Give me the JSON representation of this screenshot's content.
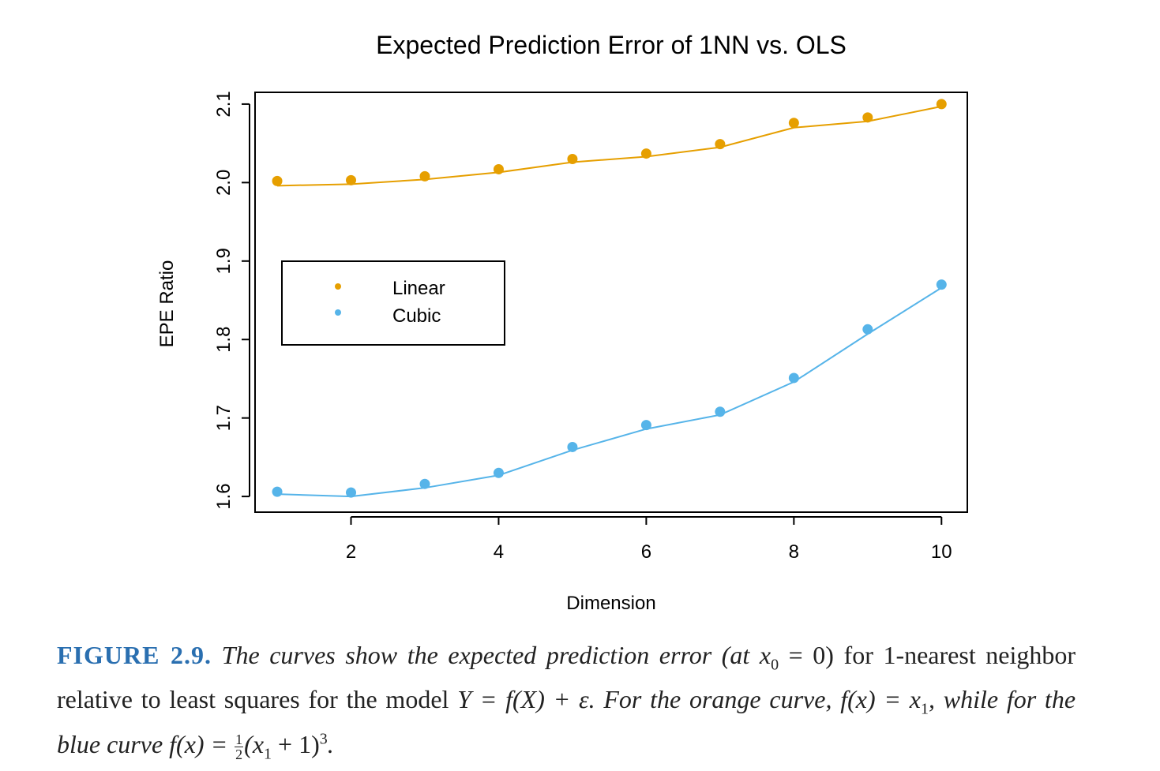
{
  "chart_data": {
    "type": "scatter",
    "title": "Expected Prediction Error of 1NN vs. OLS",
    "xlabel": "Dimension",
    "ylabel": "EPE Ratio",
    "x": [
      1,
      2,
      3,
      4,
      5,
      6,
      7,
      8,
      9,
      10
    ],
    "xticks": [
      "2",
      "4",
      "6",
      "8",
      "10"
    ],
    "yticks": [
      "1.6",
      "1.7",
      "1.8",
      "1.9",
      "2.0",
      "2.1"
    ],
    "xlim": [
      0.7,
      10.35
    ],
    "ylim": [
      1.58,
      2.115
    ],
    "legend_position": "upper-left",
    "series": [
      {
        "name": "Linear",
        "color": "#E69F00",
        "points": [
          2.002,
          2.003,
          2.008,
          2.017,
          2.03,
          2.037,
          2.049,
          2.076,
          2.083,
          2.1
        ],
        "line": [
          1.996,
          1.998,
          2.004,
          2.013,
          2.026,
          2.033,
          2.045,
          2.07,
          2.078,
          2.097
        ]
      },
      {
        "name": "Cubic",
        "color": "#56B4E9",
        "points": [
          1.606,
          1.605,
          1.616,
          1.63,
          1.663,
          1.691,
          1.708,
          1.751,
          1.813,
          1.87
        ],
        "line": [
          1.603,
          1.6,
          1.611,
          1.627,
          1.659,
          1.686,
          1.704,
          1.746,
          1.807,
          1.866
        ]
      }
    ]
  },
  "caption": {
    "label": "FIGURE 2.9.",
    "part1": "The curves show the expected prediction error (at ",
    "x0_eq": "x",
    "x0_sub": "0",
    "part2": " = 0) for 1-nearest neighbor relative to least squares for the model ",
    "model": "Y = f(X) + ε",
    "part3": ". For the orange curve, ",
    "orange_f": "f(x) = x",
    "orange_sub": "1",
    "part4": ", while for the blue curve ",
    "blue_f": "f(x) = ",
    "frac_num": "1",
    "frac_den": "2",
    "blue_rest": "(x",
    "blue_sub": "1",
    "blue_end": " + 1)",
    "blue_exp": "3",
    "part5": "."
  }
}
